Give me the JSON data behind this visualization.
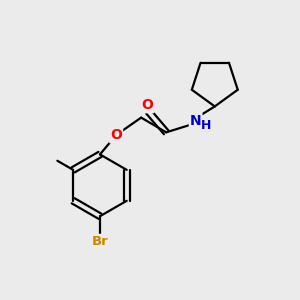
{
  "background_color": "#ebebeb",
  "bond_color": "#000000",
  "atom_colors": {
    "O": "#ff0000",
    "N": "#0000cd",
    "Br": "#cc8800",
    "C": "#000000"
  },
  "figsize": [
    3.0,
    3.0
  ],
  "dpi": 100
}
